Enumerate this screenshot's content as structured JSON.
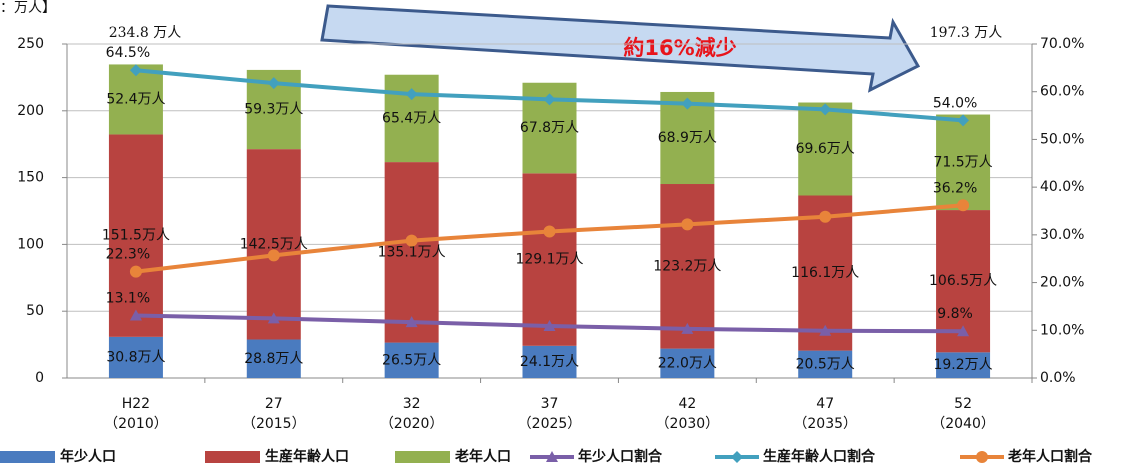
{
  "chart_data": {
    "type": "bar",
    "annotations": {
      "unit": "：万人】",
      "total_start": "234.8 万人",
      "total_end": "197.3 万人",
      "change": "約16%減少"
    },
    "categories": [
      "H22",
      "27",
      "32",
      "37",
      "42",
      "47",
      "52"
    ],
    "category_years": [
      "（2010）",
      "（2015）",
      "（2020）",
      "（2025）",
      "（2030）",
      "（2035）",
      "（2040）"
    ],
    "ylim": [
      0,
      250
    ],
    "yticks": [
      0,
      50,
      100,
      150,
      200,
      250
    ],
    "y2lim": [
      0,
      70
    ],
    "y2ticks": [
      {
        "value": 0,
        "label": "0.0%"
      },
      {
        "value": 10,
        "label": "10.0%"
      },
      {
        "value": 20,
        "label": "20.0%"
      },
      {
        "value": 30,
        "label": "30.0%"
      },
      {
        "value": 40,
        "label": "40.0%"
      },
      {
        "value": 50,
        "label": "50.0%"
      },
      {
        "value": 60,
        "label": "60.0%"
      },
      {
        "value": 70,
        "label": "70.0%"
      }
    ],
    "grid": true,
    "series": [
      {
        "name": "年少人口",
        "type": "bar",
        "color": "#4a7bbf",
        "values": [
          30.8,
          28.8,
          26.5,
          24.1,
          22.0,
          20.5,
          19.2
        ],
        "value_labels": [
          "30.8万人",
          "28.8万人",
          "26.5万人",
          "24.1万人",
          "22.0万人",
          "20.5万人",
          "19.2万人"
        ]
      },
      {
        "name": "生産年齢人口",
        "type": "bar",
        "color": "#b84340",
        "values": [
          151.5,
          142.5,
          135.1,
          129.1,
          123.2,
          116.1,
          106.5
        ],
        "value_labels": [
          "151.5万人",
          "142.5万人",
          "135.1万人",
          "129.1万人",
          "123.2万人",
          "116.1万人",
          "106.5万人"
        ]
      },
      {
        "name": "老年人口",
        "type": "bar",
        "color": "#93b050",
        "values": [
          52.4,
          59.3,
          65.4,
          67.8,
          68.9,
          69.6,
          71.5
        ],
        "value_labels": [
          "52.4万人",
          "59.3万人",
          "65.4万人",
          "67.8万人",
          "68.9万人",
          "69.6万人",
          "71.5万人"
        ]
      },
      {
        "name": "年少人口割合",
        "type": "line",
        "axis": "y2",
        "marker": "triangle",
        "color": "#7a5fa8",
        "values": [
          13.1,
          12.5,
          11.7,
          10.9,
          10.3,
          9.9,
          9.8
        ],
        "value_labels": [
          "13.1%",
          null,
          null,
          null,
          null,
          null,
          "9.8%"
        ]
      },
      {
        "name": "生産年齢人口割合",
        "type": "line",
        "axis": "y2",
        "marker": "diamond",
        "color": "#42a0be",
        "values": [
          64.5,
          61.8,
          59.5,
          58.4,
          57.5,
          56.3,
          54.0
        ],
        "value_labels": [
          "64.5%",
          null,
          null,
          null,
          null,
          null,
          "54.0%"
        ]
      },
      {
        "name": "老年人口割合",
        "type": "line",
        "axis": "y2",
        "marker": "circle",
        "color": "#e8843a",
        "values": [
          22.3,
          25.7,
          28.8,
          30.7,
          32.2,
          33.8,
          36.2
        ],
        "value_labels": [
          "22.3%",
          null,
          null,
          null,
          null,
          null,
          "36.2%"
        ]
      }
    ]
  }
}
